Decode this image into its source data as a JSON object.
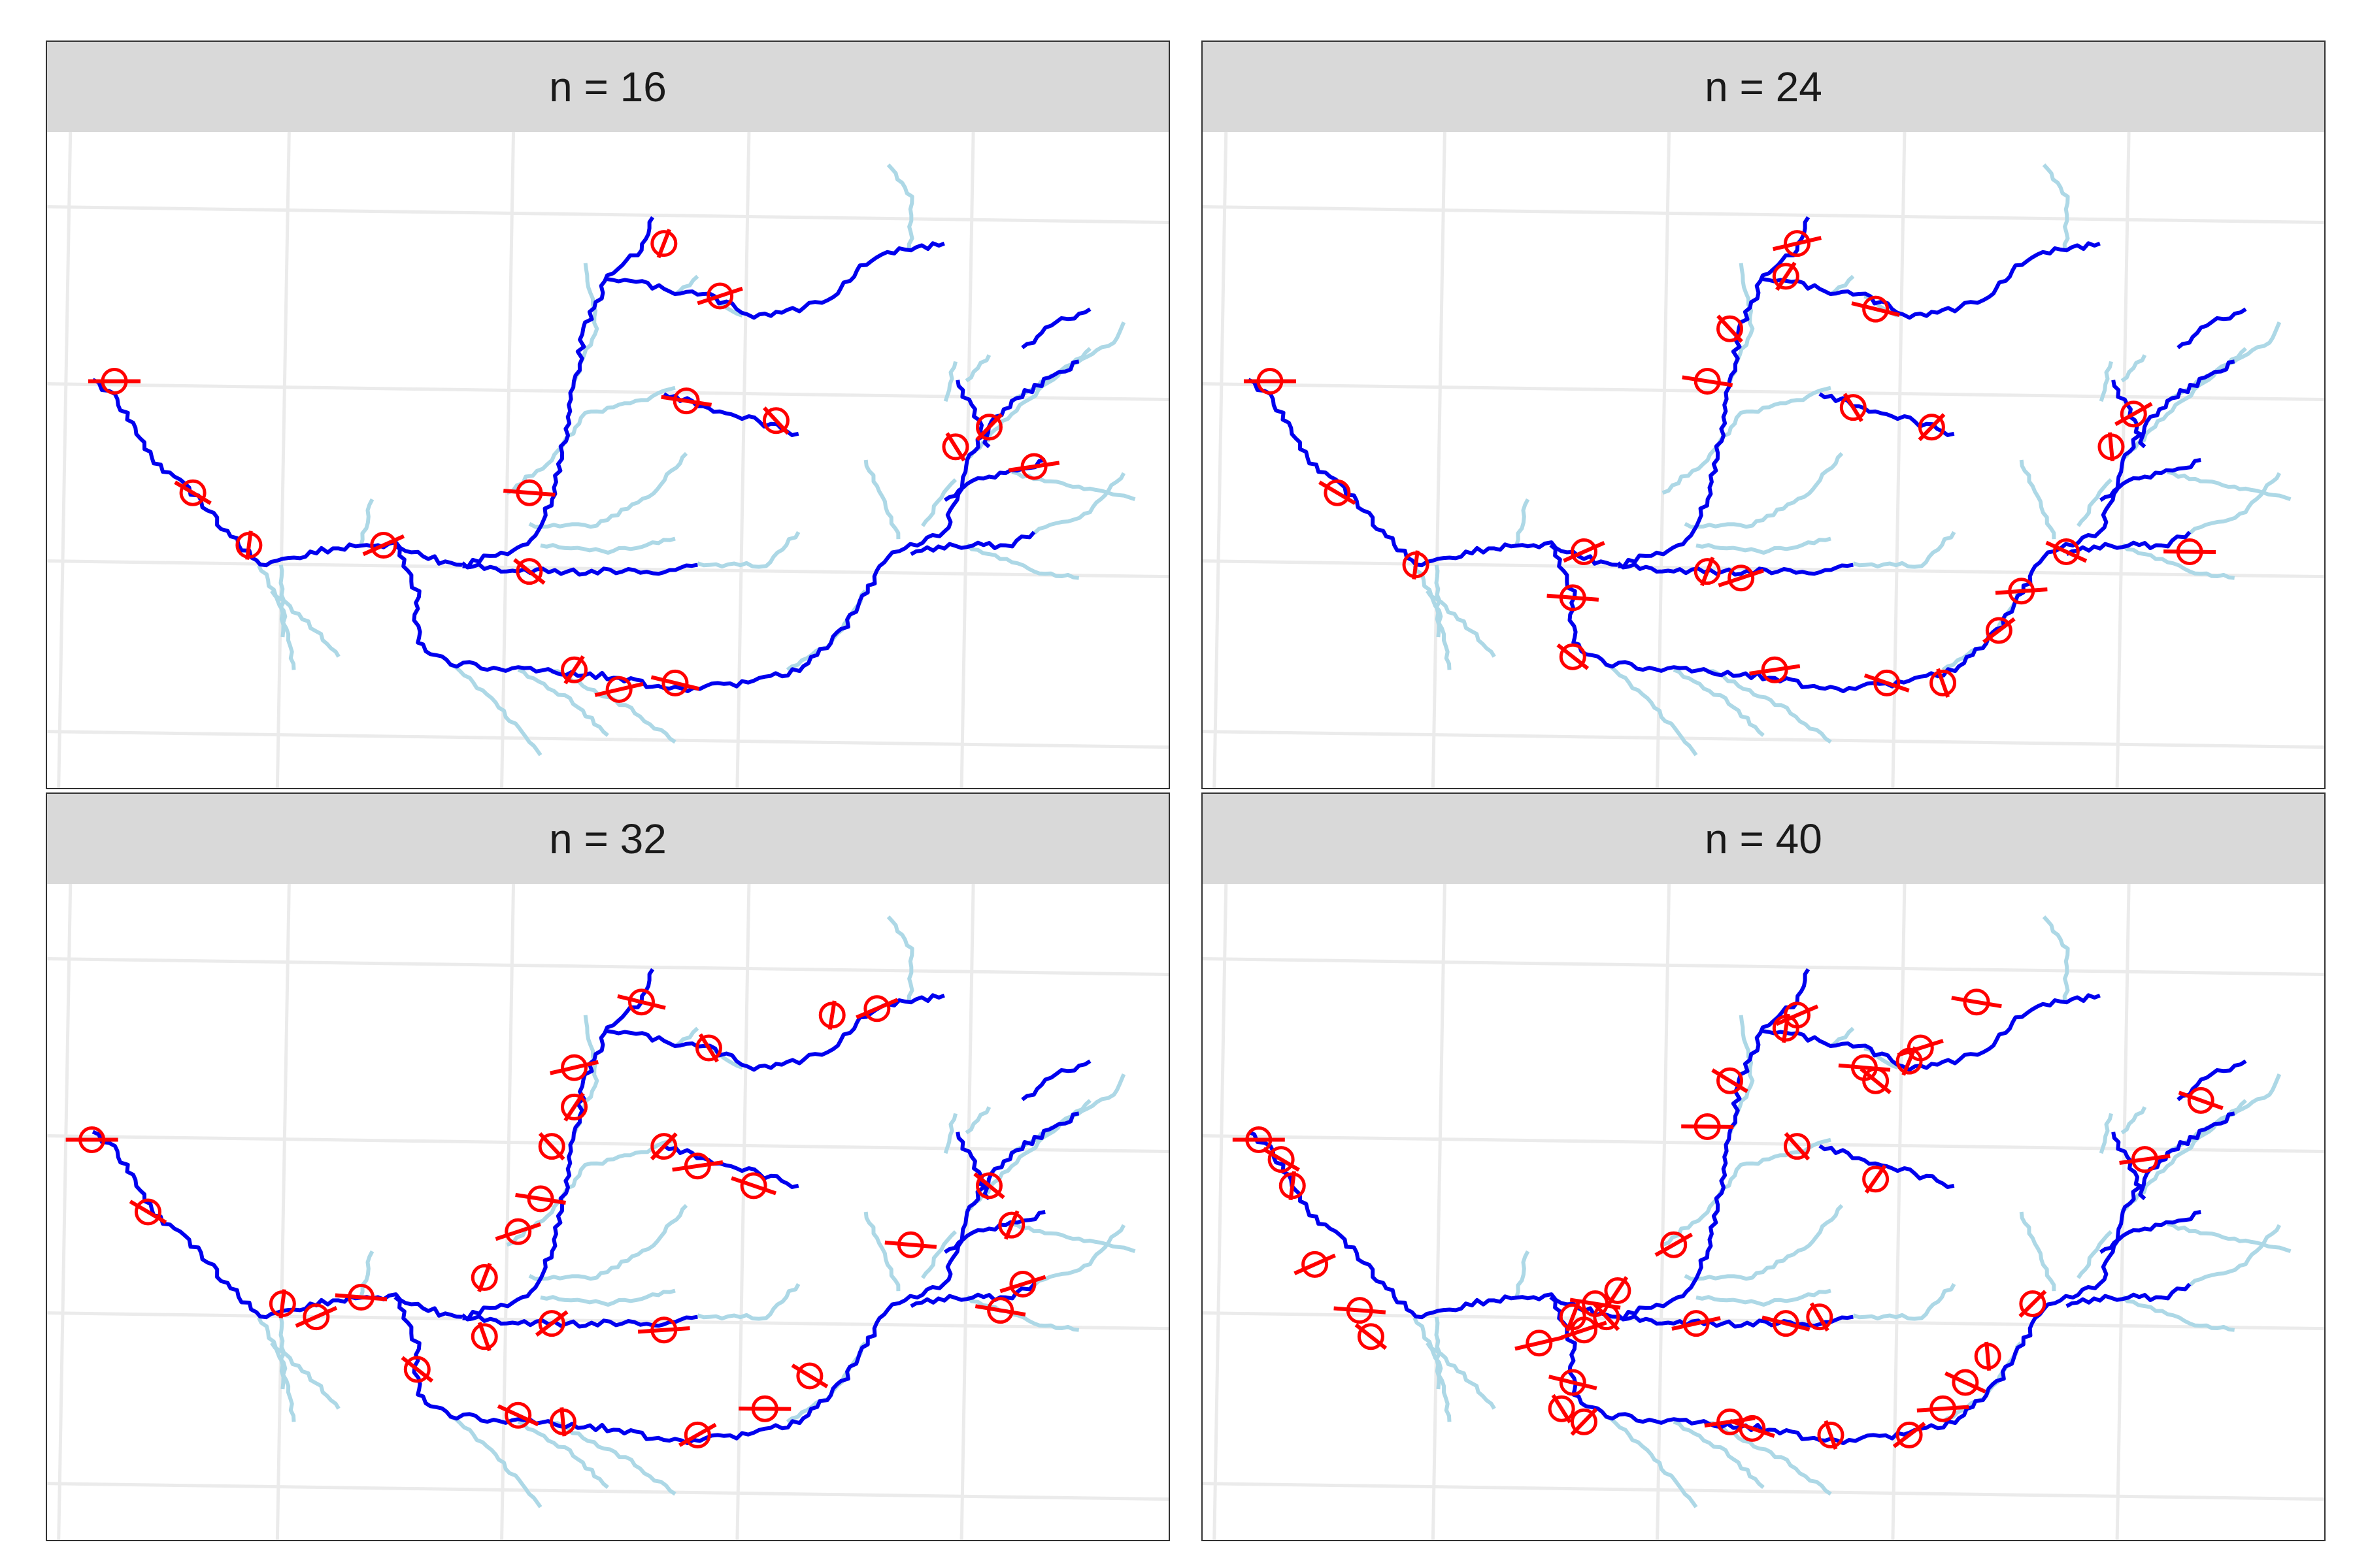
{
  "colors": {
    "main_river": "#0000ee",
    "tributary": "#add8e6",
    "sample": "#ff0000",
    "grid": "#ebebeb",
    "strip_fill": "#d9d9d9",
    "border": "#333333"
  },
  "panels": [
    {
      "title": "n = 16",
      "sites": [
        [
          0.06,
          0.38
        ],
        [
          0.13,
          0.55
        ],
        [
          0.18,
          0.63
        ],
        [
          0.3,
          0.63
        ],
        [
          0.43,
          0.55
        ],
        [
          0.43,
          0.67
        ],
        [
          0.55,
          0.17
        ],
        [
          0.6,
          0.25
        ],
        [
          0.57,
          0.41
        ],
        [
          0.65,
          0.44
        ],
        [
          0.47,
          0.82
        ],
        [
          0.51,
          0.85
        ],
        [
          0.56,
          0.84
        ],
        [
          0.81,
          0.48
        ],
        [
          0.84,
          0.45
        ],
        [
          0.88,
          0.51
        ]
      ]
    },
    {
      "title": "n = 24",
      "sites": [
        [
          0.06,
          0.38
        ],
        [
          0.12,
          0.55
        ],
        [
          0.19,
          0.66
        ],
        [
          0.34,
          0.64
        ],
        [
          0.33,
          0.71
        ],
        [
          0.33,
          0.8
        ],
        [
          0.45,
          0.67
        ],
        [
          0.48,
          0.68
        ],
        [
          0.45,
          0.38
        ],
        [
          0.47,
          0.3
        ],
        [
          0.52,
          0.22
        ],
        [
          0.53,
          0.17
        ],
        [
          0.6,
          0.27
        ],
        [
          0.58,
          0.42
        ],
        [
          0.65,
          0.45
        ],
        [
          0.51,
          0.82
        ],
        [
          0.61,
          0.84
        ],
        [
          0.66,
          0.84
        ],
        [
          0.71,
          0.76
        ],
        [
          0.73,
          0.7
        ],
        [
          0.77,
          0.64
        ],
        [
          0.81,
          0.48
        ],
        [
          0.83,
          0.43
        ],
        [
          0.88,
          0.64
        ]
      ]
    },
    {
      "title": "n = 32",
      "sites": [
        [
          0.04,
          0.39
        ],
        [
          0.09,
          0.5
        ],
        [
          0.21,
          0.64
        ],
        [
          0.24,
          0.66
        ],
        [
          0.28,
          0.63
        ],
        [
          0.33,
          0.74
        ],
        [
          0.39,
          0.6
        ],
        [
          0.42,
          0.53
        ],
        [
          0.44,
          0.48
        ],
        [
          0.45,
          0.4
        ],
        [
          0.47,
          0.34
        ],
        [
          0.47,
          0.28
        ],
        [
          0.53,
          0.18
        ],
        [
          0.59,
          0.25
        ],
        [
          0.55,
          0.4
        ],
        [
          0.58,
          0.43
        ],
        [
          0.63,
          0.46
        ],
        [
          0.39,
          0.69
        ],
        [
          0.45,
          0.67
        ],
        [
          0.55,
          0.68
        ],
        [
          0.42,
          0.81
        ],
        [
          0.46,
          0.82
        ],
        [
          0.58,
          0.84
        ],
        [
          0.64,
          0.8
        ],
        [
          0.68,
          0.75
        ],
        [
          0.7,
          0.2
        ],
        [
          0.74,
          0.19
        ],
        [
          0.77,
          0.55
        ],
        [
          0.84,
          0.46
        ],
        [
          0.86,
          0.52
        ],
        [
          0.87,
          0.61
        ],
        [
          0.85,
          0.65
        ]
      ]
    },
    {
      "title": "n = 40",
      "sites": [
        [
          0.05,
          0.39
        ],
        [
          0.07,
          0.42
        ],
        [
          0.08,
          0.46
        ],
        [
          0.1,
          0.58
        ],
        [
          0.14,
          0.65
        ],
        [
          0.15,
          0.69
        ],
        [
          0.33,
          0.66
        ],
        [
          0.34,
          0.68
        ],
        [
          0.35,
          0.64
        ],
        [
          0.36,
          0.66
        ],
        [
          0.37,
          0.62
        ],
        [
          0.3,
          0.7
        ],
        [
          0.33,
          0.76
        ],
        [
          0.32,
          0.8
        ],
        [
          0.34,
          0.82
        ],
        [
          0.47,
          0.82
        ],
        [
          0.49,
          0.83
        ],
        [
          0.56,
          0.84
        ],
        [
          0.63,
          0.84
        ],
        [
          0.66,
          0.8
        ],
        [
          0.68,
          0.76
        ],
        [
          0.7,
          0.72
        ],
        [
          0.42,
          0.55
        ],
        [
          0.45,
          0.37
        ],
        [
          0.47,
          0.3
        ],
        [
          0.52,
          0.22
        ],
        [
          0.53,
          0.2
        ],
        [
          0.59,
          0.28
        ],
        [
          0.6,
          0.3
        ],
        [
          0.63,
          0.27
        ],
        [
          0.64,
          0.25
        ],
        [
          0.69,
          0.18
        ],
        [
          0.53,
          0.4
        ],
        [
          0.6,
          0.45
        ],
        [
          0.44,
          0.67
        ],
        [
          0.52,
          0.67
        ],
        [
          0.55,
          0.66
        ],
        [
          0.74,
          0.64
        ],
        [
          0.84,
          0.42
        ],
        [
          0.89,
          0.33
        ]
      ]
    }
  ]
}
